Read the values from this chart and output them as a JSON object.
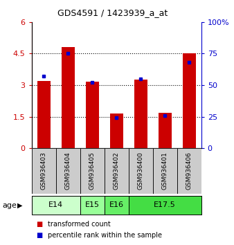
{
  "title": "GDS4591 / 1423939_a_at",
  "samples": [
    "GSM936403",
    "GSM936404",
    "GSM936405",
    "GSM936402",
    "GSM936400",
    "GSM936401",
    "GSM936406"
  ],
  "transformed_count": [
    3.2,
    4.8,
    3.15,
    1.65,
    3.25,
    1.7,
    4.5
  ],
  "percentile_rank": [
    57,
    75,
    52,
    24,
    55,
    26,
    68
  ],
  "ylim_left": [
    0,
    6
  ],
  "ylim_right": [
    0,
    100
  ],
  "yticks_left": [
    0,
    1.5,
    3.0,
    4.5,
    6.0
  ],
  "ytick_labels_left": [
    "0",
    "1.5",
    "3",
    "4.5",
    "6"
  ],
  "yticks_right": [
    0,
    25,
    50,
    75,
    100
  ],
  "ytick_labels_right": [
    "0",
    "25",
    "50",
    "75",
    "100%"
  ],
  "bar_color": "#cc0000",
  "dot_color": "#0000cc",
  "sample_box_color": "#cccccc",
  "bar_width": 0.55,
  "age_groups": [
    {
      "label": "E14",
      "start": 0,
      "end": 2,
      "color": "#ccffcc"
    },
    {
      "label": "E15",
      "start": 2,
      "end": 3,
      "color": "#99ff99"
    },
    {
      "label": "E16",
      "start": 3,
      "end": 4,
      "color": "#66ee66"
    },
    {
      "label": "E17.5",
      "start": 4,
      "end": 7,
      "color": "#44dd44"
    }
  ],
  "legend_items": [
    {
      "color": "#cc0000",
      "label": "transformed count"
    },
    {
      "color": "#0000cc",
      "label": "percentile rank within the sample"
    }
  ]
}
